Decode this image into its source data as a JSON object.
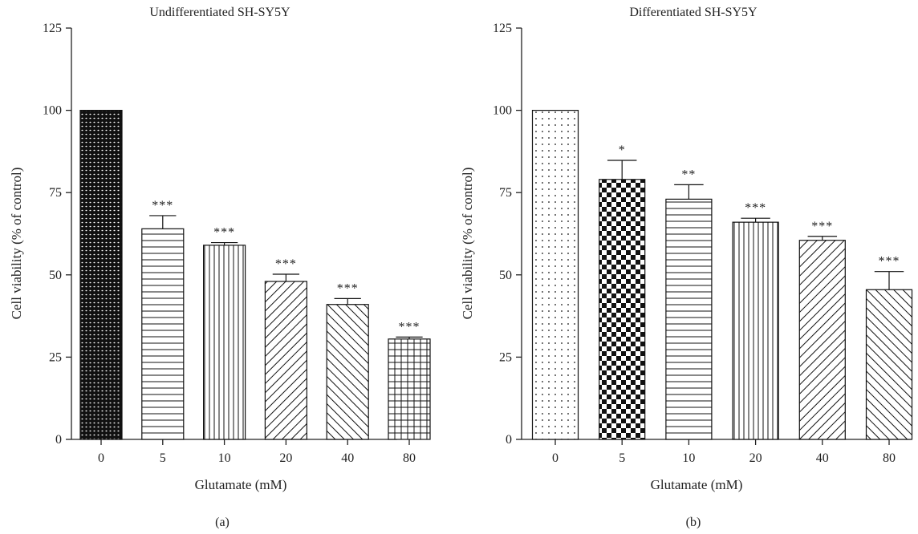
{
  "chart_data": [
    {
      "type": "bar",
      "title": "Undifferentiated SH-SY5Y",
      "xlabel": "Glutamate (mM)",
      "ylabel": "Cell viability (% of control)",
      "panel_label": "(a)",
      "categories": [
        "0",
        "5",
        "10",
        "20",
        "40",
        "80"
      ],
      "values": [
        100,
        64,
        59,
        48,
        41,
        30.5
      ],
      "errors": [
        0,
        4,
        0.8,
        2.2,
        1.8,
        0.6
      ],
      "significance": [
        "",
        "***",
        "***",
        "***",
        "***",
        "***"
      ],
      "patterns": [
        "dense-dots",
        "horizontal-lines",
        "vertical-lines",
        "diagonal-up",
        "diagonal-down",
        "grid"
      ],
      "ylim": [
        0,
        125
      ],
      "yticks": [
        0,
        25,
        50,
        75,
        100,
        125
      ],
      "grid": false,
      "legend": "none"
    },
    {
      "type": "bar",
      "title": "Differentiated SH-SY5Y",
      "xlabel": "Glutamate (mM)",
      "ylabel": "Cell viability (% of control)",
      "panel_label": "(b)",
      "categories": [
        "0",
        "5",
        "10",
        "20",
        "40",
        "80"
      ],
      "values": [
        100,
        79,
        73,
        66,
        60.5,
        45.5
      ],
      "errors": [
        0,
        5.8,
        4.4,
        1.2,
        1.2,
        5.5
      ],
      "significance": [
        "",
        "*",
        "**",
        "***",
        "***",
        "***"
      ],
      "patterns": [
        "sparse-dots",
        "checkerboard",
        "horizontal-lines",
        "vertical-lines",
        "diagonal-up",
        "diagonal-down"
      ],
      "ylim": [
        0,
        125
      ],
      "yticks": [
        0,
        25,
        50,
        75,
        100,
        125
      ],
      "grid": false,
      "legend": "none"
    }
  ]
}
